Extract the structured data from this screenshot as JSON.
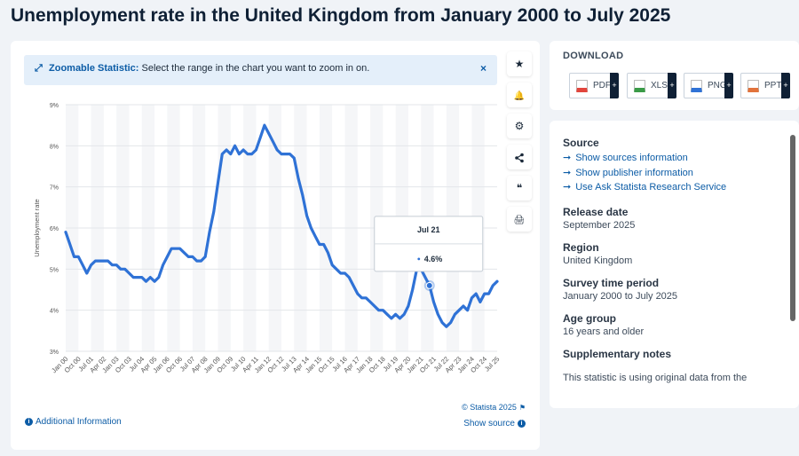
{
  "page_title": "Unemployment rate in the United Kingdom from January 2000 to July 2025",
  "zoom_banner": {
    "label": "Zoomable Statistic:",
    "text": "Select the range in the chart you want to zoom in on.",
    "close": "×"
  },
  "toolbar": {
    "favorite_icon": "★",
    "notify_icon": "🔔",
    "settings_icon": "⚙",
    "share_icon": "share-icon",
    "cite_icon": "❝",
    "print_icon": "🖨"
  },
  "chart_data": {
    "type": "line",
    "title": "",
    "ylabel": "Unemployment rate",
    "xlabel": "",
    "ylim": [
      3,
      9
    ],
    "y_ticks": [
      "3%",
      "4%",
      "5%",
      "6%",
      "7%",
      "8%",
      "9%"
    ],
    "x_tick_labels": [
      "Jan 00",
      "Oct 00",
      "Jul 01",
      "Apr 02",
      "Jan 03",
      "Oct 03",
      "Jul 04",
      "Apr 05",
      "Jan 06",
      "Oct 06",
      "Jul 07",
      "Apr 08",
      "Jan 09",
      "Oct 09",
      "Jul 10",
      "Apr 11",
      "Jan 12",
      "Oct 12",
      "Jul 13",
      "Apr 14",
      "Jan 15",
      "Oct 15",
      "Jul 16",
      "Apr 17",
      "Jan 18",
      "Oct 18",
      "Jul 19",
      "Apr 20",
      "Jan 21",
      "Oct 21",
      "Jul 22",
      "Apr 23",
      "Jan 24",
      "Oct 24",
      "Jul 25"
    ],
    "series": [
      {
        "name": "Unemployment rate",
        "color": "#2f72d6",
        "points": [
          [
            "Jan 00",
            5.9
          ],
          [
            "Apr 00",
            5.6
          ],
          [
            "Jul 00",
            5.3
          ],
          [
            "Oct 00",
            5.3
          ],
          [
            "Jan 01",
            5.1
          ],
          [
            "Apr 01",
            4.9
          ],
          [
            "Jul 01",
            5.1
          ],
          [
            "Oct 01",
            5.2
          ],
          [
            "Jan 02",
            5.2
          ],
          [
            "Apr 02",
            5.2
          ],
          [
            "Jul 02",
            5.2
          ],
          [
            "Oct 02",
            5.1
          ],
          [
            "Jan 03",
            5.1
          ],
          [
            "Apr 03",
            5.0
          ],
          [
            "Jul 03",
            5.0
          ],
          [
            "Oct 03",
            4.9
          ],
          [
            "Jan 04",
            4.8
          ],
          [
            "Apr 04",
            4.8
          ],
          [
            "Jul 04",
            4.8
          ],
          [
            "Oct 04",
            4.7
          ],
          [
            "Jan 05",
            4.8
          ],
          [
            "Apr 05",
            4.7
          ],
          [
            "Jul 05",
            4.8
          ],
          [
            "Oct 05",
            5.1
          ],
          [
            "Jan 06",
            5.3
          ],
          [
            "Apr 06",
            5.5
          ],
          [
            "Jul 06",
            5.5
          ],
          [
            "Oct 06",
            5.5
          ],
          [
            "Jan 07",
            5.4
          ],
          [
            "Apr 07",
            5.3
          ],
          [
            "Jul 07",
            5.3
          ],
          [
            "Oct 07",
            5.2
          ],
          [
            "Jan 08",
            5.2
          ],
          [
            "Apr 08",
            5.3
          ],
          [
            "Jul 08",
            5.9
          ],
          [
            "Oct 08",
            6.4
          ],
          [
            "Jan 09",
            7.1
          ],
          [
            "Apr 09",
            7.8
          ],
          [
            "Jul 09",
            7.9
          ],
          [
            "Oct 09",
            7.8
          ],
          [
            "Jan 10",
            8.0
          ],
          [
            "Apr 10",
            7.8
          ],
          [
            "Jul 10",
            7.9
          ],
          [
            "Oct 10",
            7.8
          ],
          [
            "Jan 11",
            7.8
          ],
          [
            "Apr 11",
            7.9
          ],
          [
            "Jul 11",
            8.2
          ],
          [
            "Oct 11",
            8.5
          ],
          [
            "Jan 12",
            8.3
          ],
          [
            "Apr 12",
            8.1
          ],
          [
            "Jul 12",
            7.9
          ],
          [
            "Oct 12",
            7.8
          ],
          [
            "Jan 13",
            7.8
          ],
          [
            "Apr 13",
            7.8
          ],
          [
            "Jul 13",
            7.7
          ],
          [
            "Oct 13",
            7.2
          ],
          [
            "Jan 14",
            6.8
          ],
          [
            "Apr 14",
            6.3
          ],
          [
            "Jul 14",
            6.0
          ],
          [
            "Oct 14",
            5.8
          ],
          [
            "Jan 15",
            5.6
          ],
          [
            "Apr 15",
            5.6
          ],
          [
            "Jul 15",
            5.4
          ],
          [
            "Oct 15",
            5.1
          ],
          [
            "Jan 16",
            5.0
          ],
          [
            "Apr 16",
            4.9
          ],
          [
            "Jul 16",
            4.9
          ],
          [
            "Oct 16",
            4.8
          ],
          [
            "Jan 17",
            4.6
          ],
          [
            "Apr 17",
            4.4
          ],
          [
            "Jul 17",
            4.3
          ],
          [
            "Oct 17",
            4.3
          ],
          [
            "Jan 18",
            4.2
          ],
          [
            "Apr 18",
            4.1
          ],
          [
            "Jul 18",
            4.0
          ],
          [
            "Oct 18",
            4.0
          ],
          [
            "Jan 19",
            3.9
          ],
          [
            "Apr 19",
            3.8
          ],
          [
            "Jul 19",
            3.9
          ],
          [
            "Oct 19",
            3.8
          ],
          [
            "Jan 20",
            3.9
          ],
          [
            "Apr 20",
            4.1
          ],
          [
            "Jul 20",
            4.5
          ],
          [
            "Oct 20",
            5.0
          ],
          [
            "Jan 21",
            5.0
          ],
          [
            "Apr 21",
            4.8
          ],
          [
            "Jul 21",
            4.6
          ],
          [
            "Oct 21",
            4.2
          ],
          [
            "Jan 22",
            3.9
          ],
          [
            "Apr 22",
            3.7
          ],
          [
            "Jul 22",
            3.6
          ],
          [
            "Oct 22",
            3.7
          ],
          [
            "Jan 23",
            3.9
          ],
          [
            "Apr 23",
            4.0
          ],
          [
            "Jul 23",
            4.1
          ],
          [
            "Oct 23",
            4.0
          ],
          [
            "Jan 24",
            4.3
          ],
          [
            "Apr 24",
            4.4
          ],
          [
            "Jul 24",
            4.2
          ],
          [
            "Oct 24",
            4.4
          ],
          [
            "Jan 25",
            4.4
          ],
          [
            "Apr 25",
            4.6
          ],
          [
            "Jul 25",
            4.7
          ]
        ]
      }
    ],
    "tooltip": {
      "x": "Jul 21",
      "value": "4.6%"
    },
    "grid": true,
    "legend": "none"
  },
  "chart_footer": {
    "credit": "© Statista 2025",
    "additional_info": "Additional Information",
    "show_source": "Show source"
  },
  "download": {
    "title": "DOWNLOAD",
    "buttons": [
      {
        "label": "PDF",
        "color": "#e2453c"
      },
      {
        "label": "XLS",
        "color": "#3a9b47"
      },
      {
        "label": "PNG",
        "color": "#2f72d6"
      },
      {
        "label": "PPT",
        "color": "#e2733c"
      }
    ]
  },
  "info": {
    "source_heading": "Source",
    "source_links": [
      "Show sources information",
      "Show publisher information",
      "Use Ask Statista Research Service"
    ],
    "release_date_heading": "Release date",
    "release_date": "September 2025",
    "region_heading": "Region",
    "region": "United Kingdom",
    "survey_period_heading": "Survey time period",
    "survey_period": "January 2000 to July 2025",
    "age_group_heading": "Age group",
    "age_group": "16 years and older",
    "notes_heading": "Supplementary notes",
    "notes": "This statistic is using original data from the"
  }
}
